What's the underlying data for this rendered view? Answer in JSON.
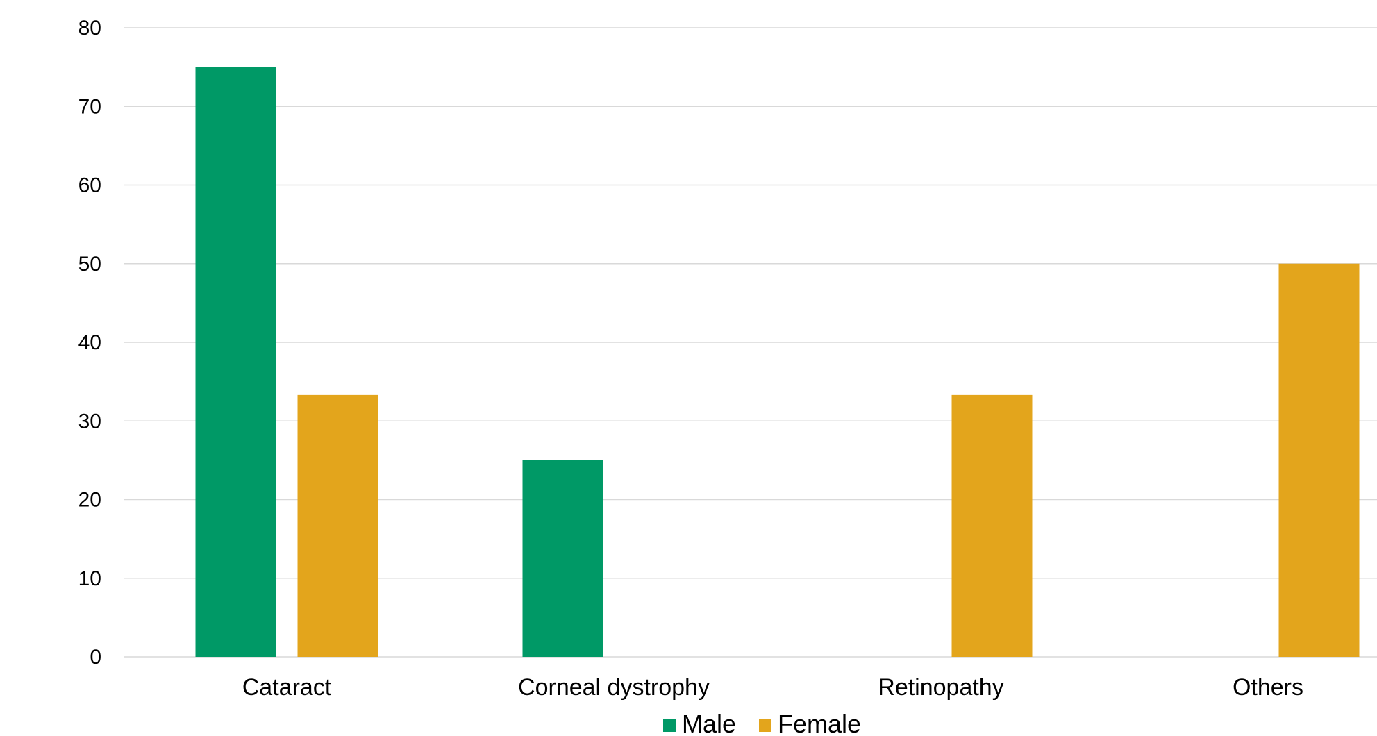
{
  "chart_data": {
    "type": "bar",
    "categories": [
      "Cataract",
      "Corneal dystrophy",
      "Retinopathy",
      "Others"
    ],
    "series": [
      {
        "name": "Male",
        "color": "#009966",
        "values": [
          75,
          25,
          0,
          0
        ]
      },
      {
        "name": "Female",
        "color": "#E3A51C",
        "values": [
          33.3,
          0,
          33.3,
          50
        ]
      }
    ],
    "title": "",
    "xlabel": "",
    "ylabel": "",
    "ylim": [
      0,
      80
    ],
    "yticks": [
      "0",
      "10",
      "20",
      "30",
      "40",
      "50",
      "60",
      "70",
      "80"
    ],
    "grid": true,
    "legend_position": "bottom",
    "gridline_color": "#D9D9D9"
  }
}
